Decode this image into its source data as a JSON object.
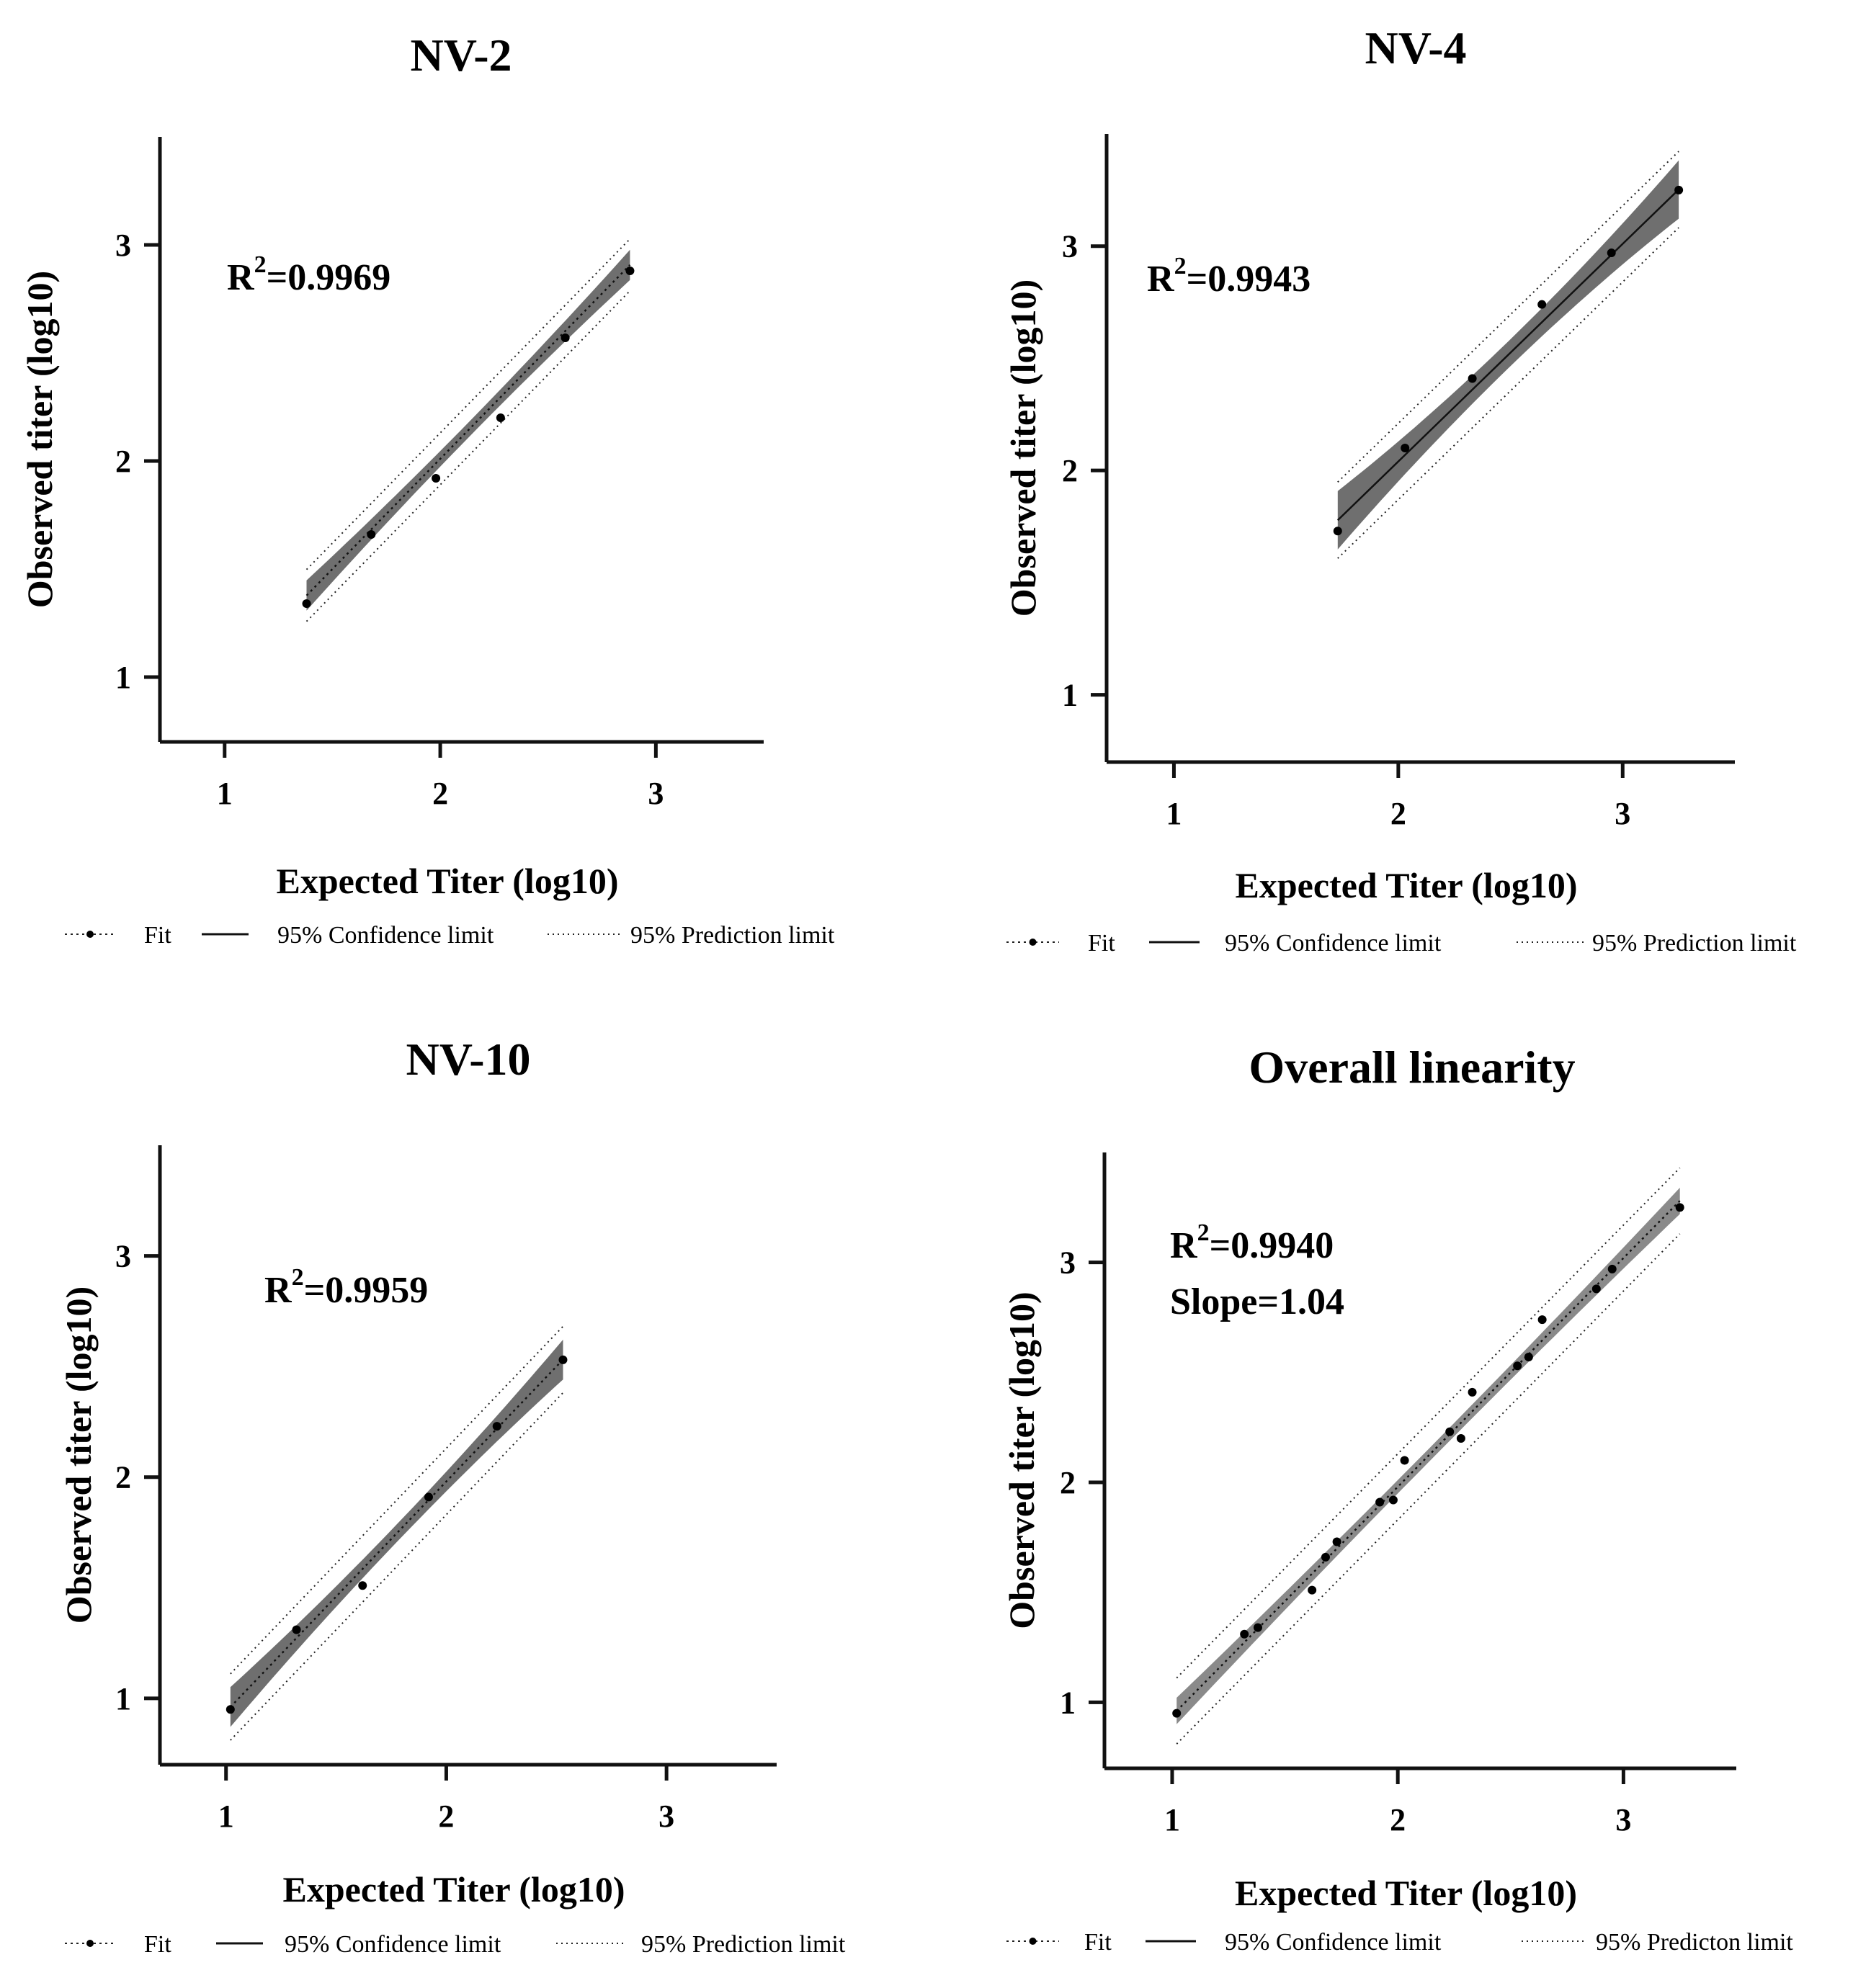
{
  "chart_data": [
    {
      "type": "scatter",
      "title": "NV-2",
      "xlabel": "Expected Titer (log10)",
      "ylabel": "Observed titer (log10)",
      "xlim": [
        0.7,
        3.5
      ],
      "ylim": [
        0.7,
        3.5
      ],
      "xticks": [
        1,
        2,
        3
      ],
      "yticks": [
        1,
        2,
        3
      ],
      "xtick_labels": [
        "1",
        "2",
        "3"
      ],
      "ytick_labels": [
        "1",
        "2",
        "3"
      ],
      "annotation": {
        "r2_base": "R",
        "r2_sup": "2",
        "r2_value": "=0.9969"
      },
      "points": {
        "x": [
          1.38,
          1.68,
          1.98,
          2.28,
          2.58,
          2.88
        ],
        "y": [
          1.34,
          1.66,
          1.92,
          2.2,
          2.57,
          2.88
        ]
      },
      "fit": {
        "x_range": [
          1.38,
          2.88
        ],
        "slope": 1.02,
        "intercept": -0.03
      },
      "confidence_halfwidth": {
        "ends": 0.07,
        "center": 0.035
      },
      "prediction_halfwidth": 0.12,
      "legend": {
        "fit": "Fit",
        "confidence": "95% Confidence limit",
        "prediction": "95% Prediction limit"
      }
    },
    {
      "type": "scatter",
      "title": "NV-4",
      "xlabel": "Expected Titer (log10)",
      "ylabel": "Observed titer (log10)",
      "xlim": [
        0.7,
        3.5
      ],
      "ylim": [
        0.7,
        3.5
      ],
      "xticks": [
        1,
        2,
        3
      ],
      "yticks": [
        1,
        2,
        3
      ],
      "xtick_labels": [
        "1",
        "2",
        "3"
      ],
      "ytick_labels": [
        "1",
        "2",
        "3"
      ],
      "annotation": {
        "r2_base": "R",
        "r2_sup": "2",
        "r2_value": "=0.9943"
      },
      "points": {
        "x": [
          1.73,
          2.03,
          2.33,
          2.64,
          2.95,
          3.25
        ],
        "y": [
          1.73,
          2.1,
          2.41,
          2.74,
          2.97,
          3.25
        ]
      },
      "fit": {
        "x_range": [
          1.73,
          3.25
        ],
        "slope": 0.97,
        "intercept": 0.1
      },
      "confidence_halfwidth": {
        "ends": 0.13,
        "center": 0.06
      },
      "prediction_halfwidth": 0.17,
      "legend": {
        "fit": "Fit",
        "confidence": "95% Confidence limit",
        "prediction": "95% Prediction limit"
      }
    },
    {
      "type": "scatter",
      "title": "NV-10",
      "xlabel": "Expected Titer (log10)",
      "ylabel": "Observed titer (log10)",
      "xlim": [
        0.7,
        3.5
      ],
      "ylim": [
        0.7,
        3.5
      ],
      "xticks": [
        1,
        2,
        3
      ],
      "yticks": [
        1,
        2,
        3
      ],
      "xtick_labels": [
        "1",
        "2",
        "3"
      ],
      "ytick_labels": [
        "1",
        "2",
        "3"
      ],
      "annotation": {
        "r2_base": "R",
        "r2_sup": "2",
        "r2_value": "=0.9959"
      },
      "points": {
        "x": [
          1.02,
          1.32,
          1.62,
          1.92,
          2.23,
          2.53
        ],
        "y": [
          0.95,
          1.31,
          1.51,
          1.91,
          2.23,
          2.53
        ]
      },
      "fit": {
        "x_range": [
          1.02,
          2.53
        ],
        "slope": 1.04,
        "intercept": -0.1
      },
      "confidence_halfwidth": {
        "ends": 0.09,
        "center": 0.04
      },
      "prediction_halfwidth": 0.15,
      "legend": {
        "fit": "Fit",
        "confidence": "95% Confidence limit",
        "prediction": "95% Prediction limit"
      }
    },
    {
      "type": "scatter",
      "title": "Overall linearity",
      "xlabel": "Expected Titer (log10)",
      "ylabel": "Observed titer (log10)",
      "xlim": [
        0.7,
        3.5
      ],
      "ylim": [
        0.7,
        3.5
      ],
      "xticks": [
        1,
        2,
        3
      ],
      "yticks": [
        1,
        2,
        3
      ],
      "xtick_labels": [
        "1",
        "2",
        "3"
      ],
      "ytick_labels": [
        "1",
        "2",
        "3"
      ],
      "annotation": {
        "r2_base": "R",
        "r2_sup": "2",
        "r2_value": "=0.9940",
        "slope_text": "Slope=1.04"
      },
      "points": {
        "x": [
          1.02,
          1.32,
          1.38,
          1.62,
          1.68,
          1.73,
          1.92,
          1.98,
          2.03,
          2.23,
          2.28,
          2.33,
          2.53,
          2.58,
          2.64,
          2.88,
          2.95,
          3.25
        ],
        "y": [
          0.95,
          1.31,
          1.34,
          1.51,
          1.66,
          1.73,
          1.91,
          1.92,
          2.1,
          2.23,
          2.2,
          2.41,
          2.53,
          2.57,
          2.74,
          2.88,
          2.97,
          3.25
        ]
      },
      "fit": {
        "x_range": [
          1.02,
          3.25
        ],
        "slope": 1.04,
        "intercept": -0.1
      },
      "confidence_halfwidth": {
        "ends": 0.06,
        "center": 0.03
      },
      "prediction_halfwidth": 0.15,
      "legend": {
        "fit": "Fit",
        "confidence": "95% Confidence limit",
        "prediction": "95% Predicton limit"
      }
    }
  ],
  "colors": {
    "band": "#6f6f6f",
    "overall_band": "#8a8a8a",
    "axis": "#111111",
    "point": "#000000"
  }
}
